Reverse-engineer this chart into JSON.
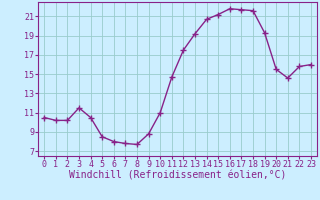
{
  "x": [
    0,
    1,
    2,
    3,
    4,
    5,
    6,
    7,
    8,
    9,
    10,
    11,
    12,
    13,
    14,
    15,
    16,
    17,
    18,
    19,
    20,
    21,
    22,
    23
  ],
  "y": [
    10.5,
    10.2,
    10.2,
    11.5,
    10.5,
    8.5,
    8.0,
    7.8,
    7.7,
    8.8,
    11.0,
    14.7,
    17.5,
    19.2,
    20.7,
    21.2,
    21.8,
    21.7,
    21.6,
    19.3,
    15.5,
    14.6,
    15.8,
    16.0
  ],
  "line_color": "#882288",
  "marker": "+",
  "markersize": 4,
  "linewidth": 1.0,
  "background_color": "#cceeff",
  "grid_color": "#99cccc",
  "xlabel": "Windchill (Refroidissement éolien,°C)",
  "xlabel_fontsize": 7,
  "ylabel_ticks": [
    7,
    9,
    11,
    13,
    15,
    17,
    19,
    21
  ],
  "ylim": [
    6.5,
    22.5
  ],
  "xlim": [
    -0.5,
    23.5
  ],
  "xtick_labels": [
    "0",
    "1",
    "2",
    "3",
    "4",
    "5",
    "6",
    "7",
    "8",
    "9",
    "10",
    "11",
    "12",
    "13",
    "14",
    "15",
    "16",
    "17",
    "18",
    "19",
    "20",
    "21",
    "22",
    "23"
  ],
  "tick_fontsize": 6,
  "title_color": "#882288"
}
